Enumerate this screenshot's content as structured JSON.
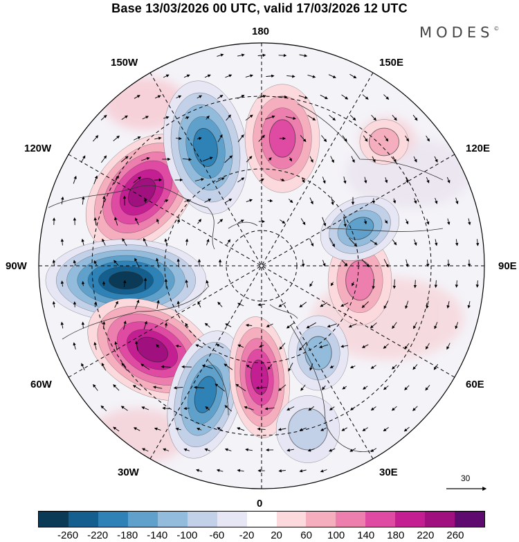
{
  "title": "Base 13/03/2026 00 UTC, valid 17/03/2026 12 UTC",
  "brand": "MODES",
  "brand_mark": "©",
  "longitude_labels": {
    "top": "180",
    "bottom": "0",
    "left": "90W",
    "right": "90E",
    "upper_left": "150W",
    "upper_left_2": "120W",
    "upper_right": "150E",
    "upper_right_2": "120E",
    "lower_left": "60W",
    "lower_left_2": "30W",
    "lower_right": "60E",
    "lower_right_2": "30E"
  },
  "reference_vector": {
    "value": "30"
  },
  "colorbar": {
    "colors": [
      "#0b3a57",
      "#155f8e",
      "#2f82b6",
      "#5fa1cb",
      "#93bcdc",
      "#c2d1e8",
      "#e6e6f4",
      "#ffffff",
      "#fbd9dc",
      "#f4aebd",
      "#ec7fae",
      "#df4aa2",
      "#c41f92",
      "#a0107f",
      "#5e0a6e"
    ],
    "ticks": [
      "-260",
      "-220",
      "-180",
      "-140",
      "-100",
      "-60",
      "-20",
      "20",
      "60",
      "100",
      "140",
      "180",
      "220",
      "260"
    ]
  },
  "anomaly_centers": [
    {
      "name": "pos-a",
      "value": 220
    },
    {
      "name": "neg-b",
      "value": -180
    },
    {
      "name": "pos-c",
      "value": 140
    },
    {
      "name": "neg-d",
      "value": -260
    },
    {
      "name": "pos-e",
      "value": 220
    },
    {
      "name": "neg-f",
      "value": -180
    },
    {
      "name": "pos-g",
      "value": 180
    },
    {
      "name": "neg-h",
      "value": -100
    },
    {
      "name": "pos-i",
      "value": 100
    },
    {
      "name": "neg-j",
      "value": -140
    },
    {
      "name": "pos-k",
      "value": 60
    },
    {
      "name": "neg-l",
      "value": -60
    }
  ]
}
